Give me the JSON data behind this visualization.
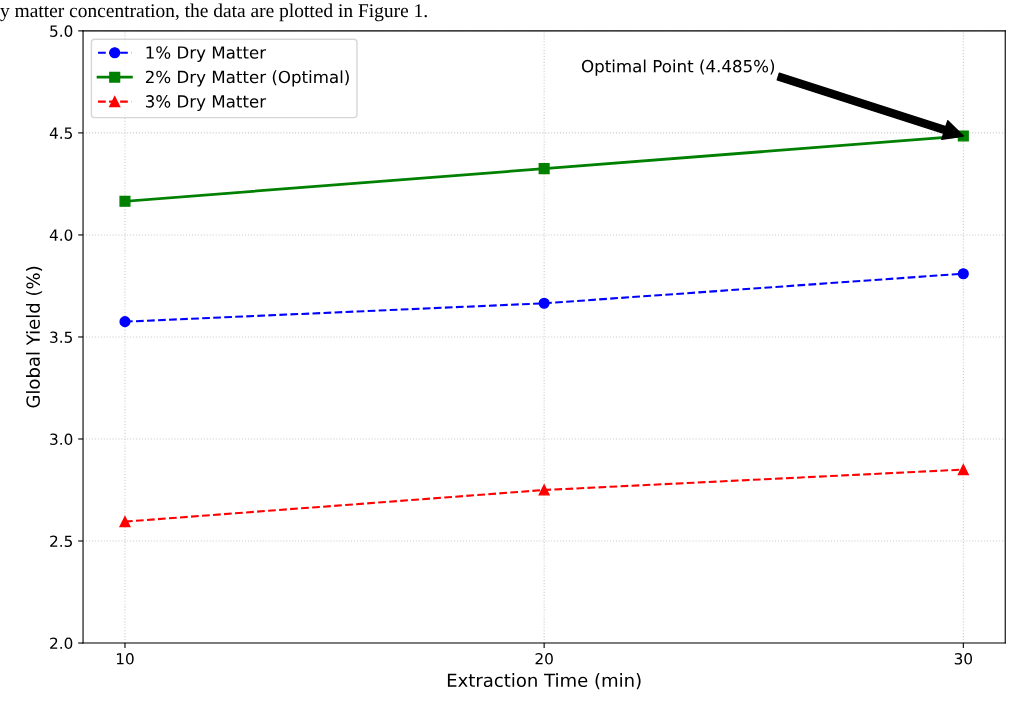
{
  "chart_data": {
    "type": "line",
    "xlabel": "Extraction Time (min)",
    "ylabel": "Global Yield (%)",
    "x": [
      10,
      20,
      30
    ],
    "xlim": [
      9,
      31
    ],
    "xticks": [
      10,
      20,
      30
    ],
    "ylim": [
      2.0,
      5.0
    ],
    "yticks": [
      {
        "value": 2.0,
        "label": "2.0"
      },
      {
        "value": 2.5,
        "label": "2.5"
      },
      {
        "value": 3.0,
        "label": "3.0"
      },
      {
        "value": 3.5,
        "label": "3.5"
      },
      {
        "value": 4.0,
        "label": "4.0"
      },
      {
        "value": 4.5,
        "label": "4.5"
      },
      {
        "value": 5.0,
        "label": "5.0"
      }
    ],
    "series": [
      {
        "name": "1% Dry Matter",
        "color": "#0000ff",
        "values": [
          3.575,
          3.665,
          3.81
        ],
        "marker": "circle",
        "line_style": "dashed"
      },
      {
        "name": "2% Dry Matter (Optimal)",
        "color": "#008000",
        "values": [
          4.165,
          4.325,
          4.485
        ],
        "marker": "square",
        "line_style": "solid"
      },
      {
        "name": "3% Dry Matter",
        "color": "#ff0000",
        "values": [
          2.595,
          2.75,
          2.85
        ],
        "marker": "triangle",
        "line_style": "dashed"
      }
    ],
    "annotations": [
      "Optimal Point (4.485%)",
      "y matter concentration, the data are plotted in Figure 1."
    ],
    "grid": true,
    "legend": "top left"
  }
}
